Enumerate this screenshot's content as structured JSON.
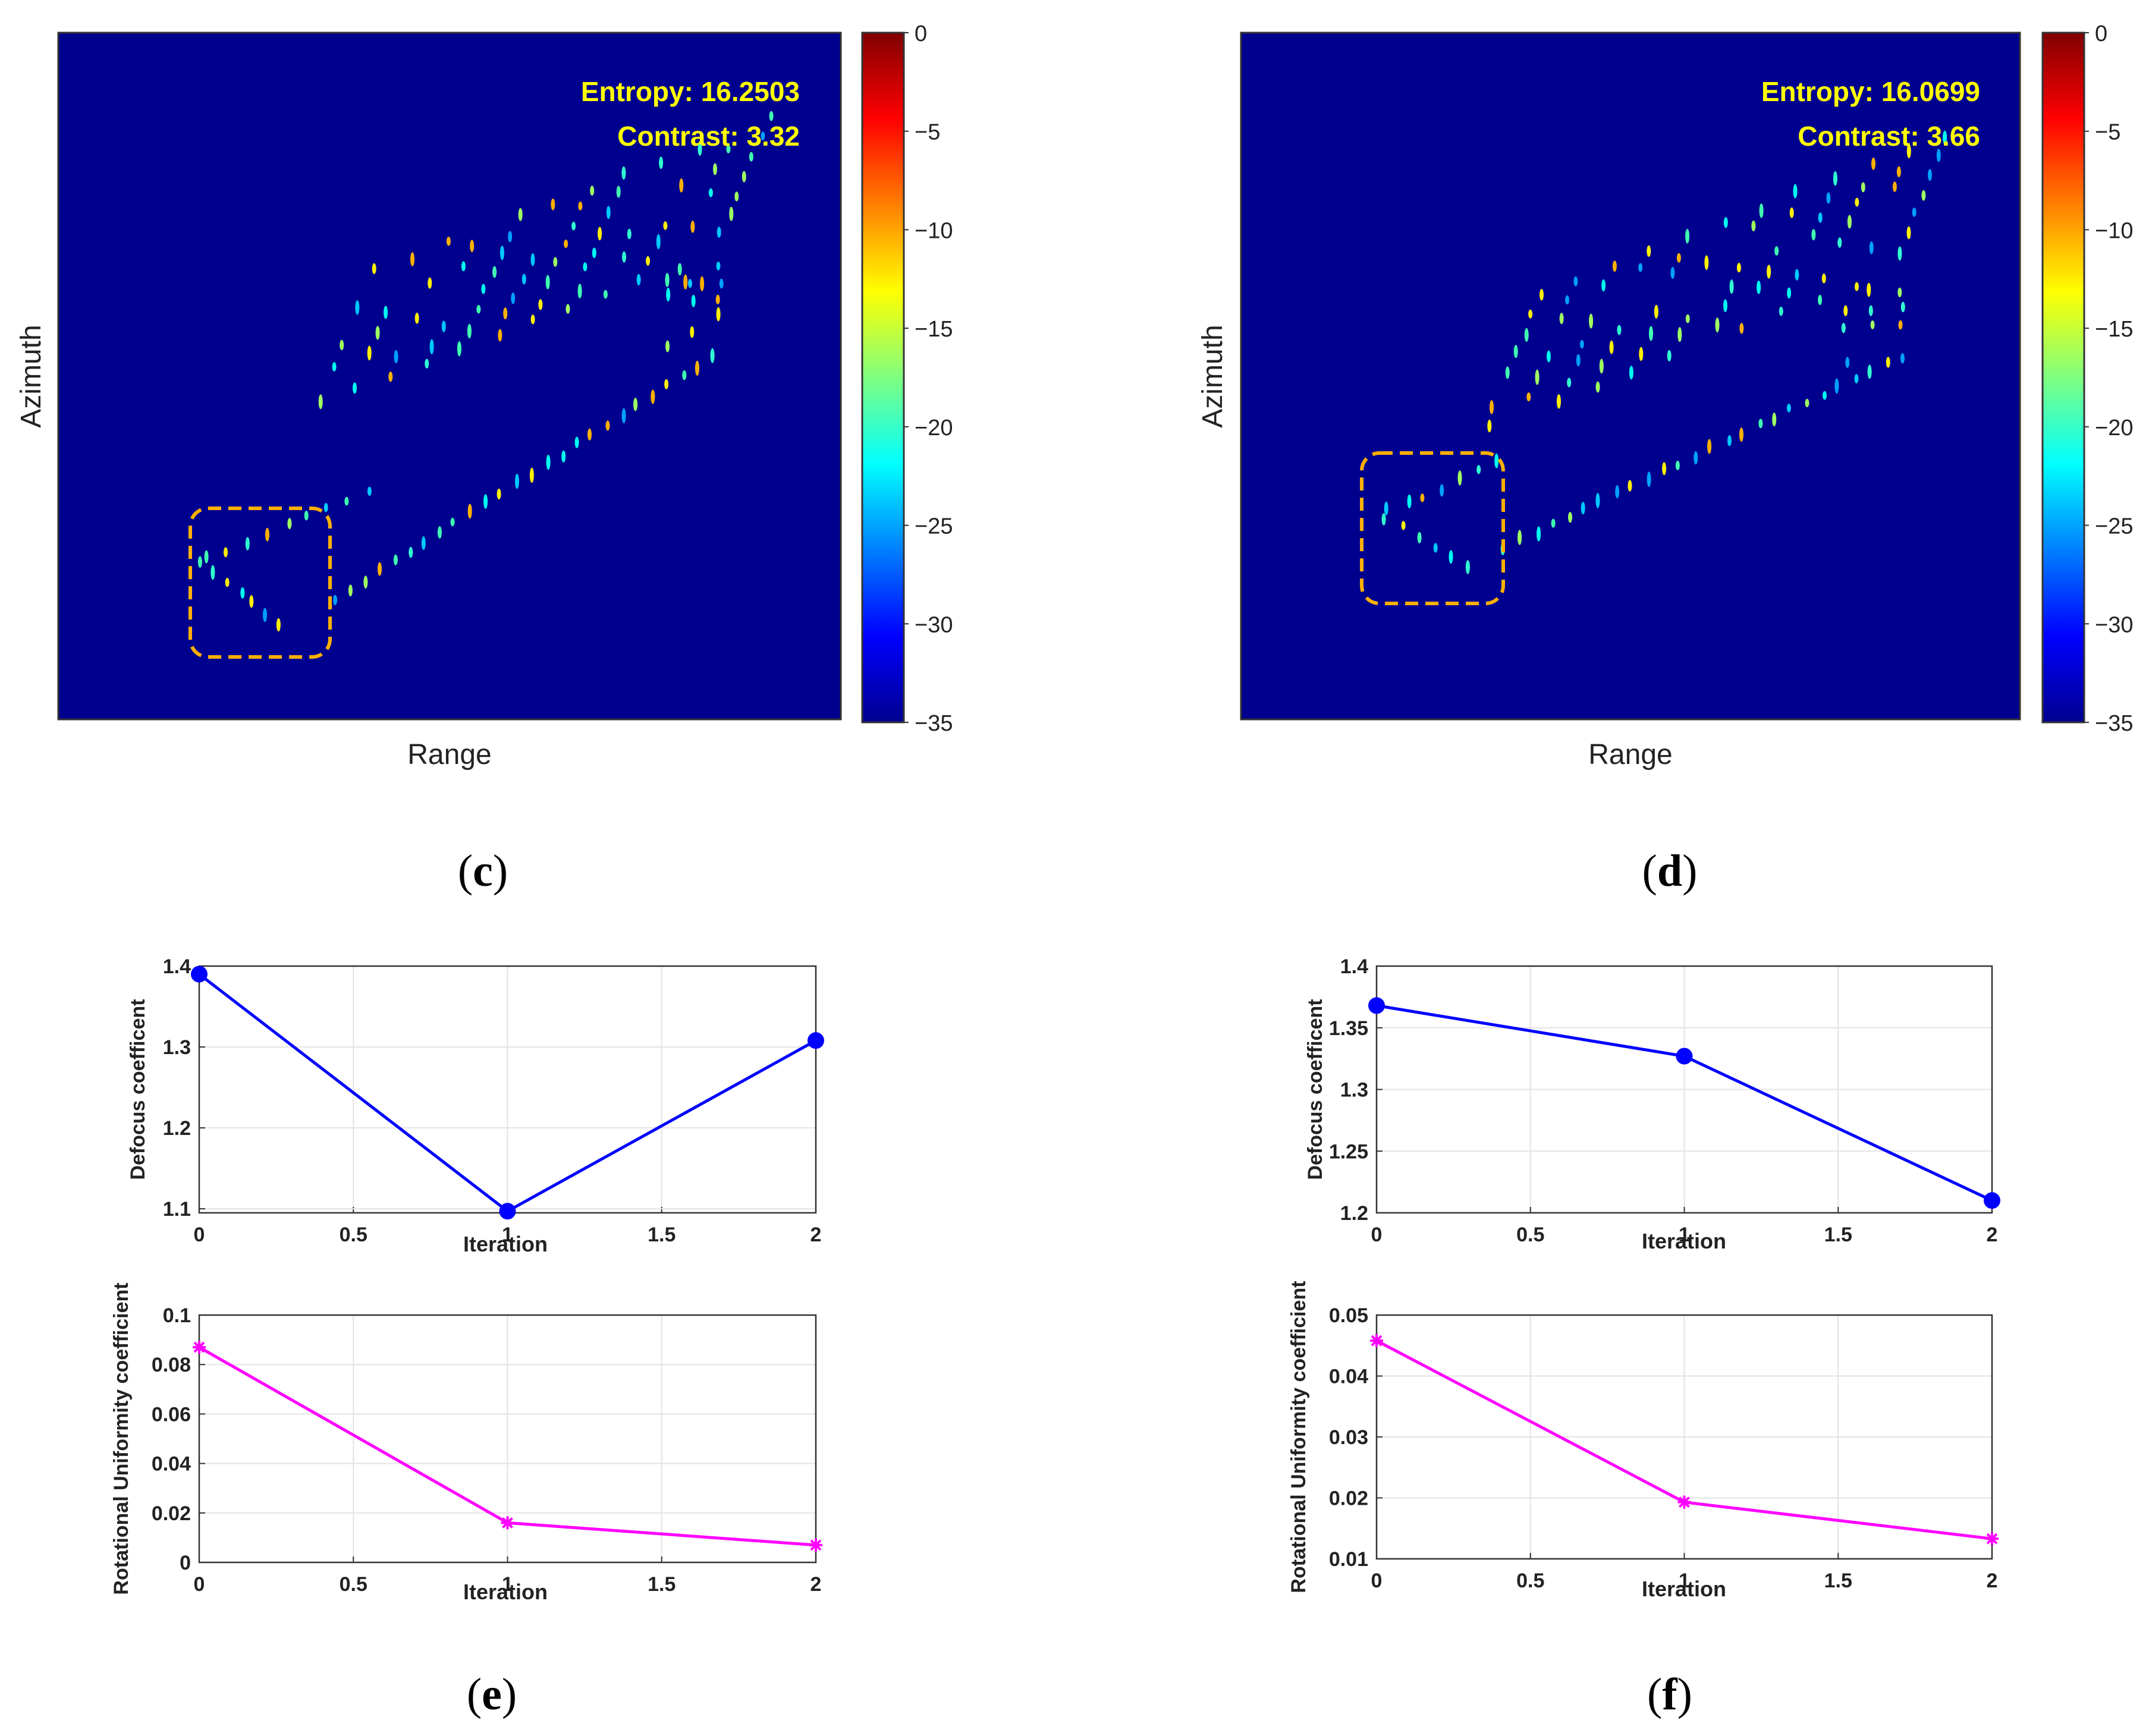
{
  "panels": {
    "c": {
      "label": "c"
    },
    "d": {
      "label": "d"
    },
    "e": {
      "label": "e"
    },
    "f": {
      "label": "f"
    }
  },
  "colors": {
    "background": "#00008F",
    "annotation_text": "#FFFF00",
    "highlight_box": "#FFB000",
    "defocus_series": "#0000FF",
    "uniformity_series": "#FF00FF"
  },
  "chart_data": [
    {
      "id": "c",
      "type": "heatmap",
      "xlabel": "Range",
      "ylabel": "Azimuth",
      "annotations": [
        "Entropy: 16.2503",
        "Contrast: 3.32"
      ],
      "colorbar": {
        "colormap": "jet",
        "range": [
          -35,
          0
        ],
        "ticks": [
          0,
          -5,
          -10,
          -15,
          -20,
          -25,
          -30,
          -35
        ]
      },
      "highlight": "dashed rounded box, lower-left"
    },
    {
      "id": "d",
      "type": "heatmap",
      "xlabel": "Range",
      "ylabel": "Azimuth",
      "annotations": [
        "Entropy: 16.0699",
        "Contrast: 3.66"
      ],
      "colorbar": {
        "colormap": "jet",
        "range": [
          -35,
          0
        ],
        "ticks": [
          0,
          -5,
          -10,
          -15,
          -20,
          -25,
          -30,
          -35
        ]
      },
      "highlight": "dashed rounded box, lower-left"
    },
    {
      "id": "e-top",
      "type": "line",
      "xlabel": "Iteration",
      "ylabel": "Defocus coefficent",
      "x": [
        0,
        1,
        2
      ],
      "series": [
        {
          "values": [
            1.39,
            1.097,
            1.308
          ]
        }
      ],
      "xlim": [
        0,
        2
      ],
      "ylim": [
        1.095,
        1.4
      ],
      "xticks": [
        "0",
        "0.5",
        "1",
        "1.5",
        "2"
      ],
      "yticks": [
        "1.1",
        "1.2",
        "1.3",
        "1.4"
      ],
      "ytick_values": [
        1.1,
        1.2,
        1.3,
        1.4
      ],
      "grid": true,
      "marker": "circle"
    },
    {
      "id": "e-bottom",
      "type": "line",
      "xlabel": "Iteration",
      "ylabel": "Rotational Uniformity coefficient",
      "x": [
        0,
        1,
        2
      ],
      "series": [
        {
          "values": [
            0.087,
            0.016,
            0.007
          ]
        }
      ],
      "xlim": [
        0,
        2
      ],
      "ylim": [
        0,
        0.1
      ],
      "xticks": [
        "0",
        "0.5",
        "1",
        "1.5",
        "2"
      ],
      "yticks": [
        "0",
        "0.02",
        "0.04",
        "0.06",
        "0.08",
        "0.1"
      ],
      "ytick_values": [
        0,
        0.02,
        0.04,
        0.06,
        0.08,
        0.1
      ],
      "grid": true,
      "marker": "asterisk"
    },
    {
      "id": "f-top",
      "type": "line",
      "xlabel": "Iteration",
      "ylabel": "Defocus coefficent",
      "x": [
        0,
        1,
        2
      ],
      "series": [
        {
          "values": [
            1.368,
            1.327,
            1.21
          ]
        }
      ],
      "xlim": [
        0,
        2
      ],
      "ylim": [
        1.2,
        1.4
      ],
      "xticks": [
        "0",
        "0.5",
        "1",
        "1.5",
        "2"
      ],
      "yticks": [
        "1.2",
        "1.25",
        "1.3",
        "1.35",
        "1.4"
      ],
      "ytick_values": [
        1.2,
        1.25,
        1.3,
        1.35,
        1.4
      ],
      "grid": true,
      "marker": "circle"
    },
    {
      "id": "f-bottom",
      "type": "line",
      "xlabel": "Iteration",
      "ylabel": "Rotational Uniformity coefficient",
      "x": [
        0,
        1,
        2
      ],
      "series": [
        {
          "values": [
            0.0458,
            0.0193,
            0.0133
          ]
        }
      ],
      "xlim": [
        0,
        2
      ],
      "ylim": [
        0.01,
        0.05
      ],
      "xticks": [
        "0",
        "0.5",
        "1",
        "1.5",
        "2"
      ],
      "yticks": [
        "0.01",
        "0.02",
        "0.03",
        "0.04",
        "0.05"
      ],
      "ytick_values": [
        0.01,
        0.02,
        0.03,
        0.04,
        0.05
      ],
      "grid": true,
      "marker": "asterisk"
    }
  ]
}
